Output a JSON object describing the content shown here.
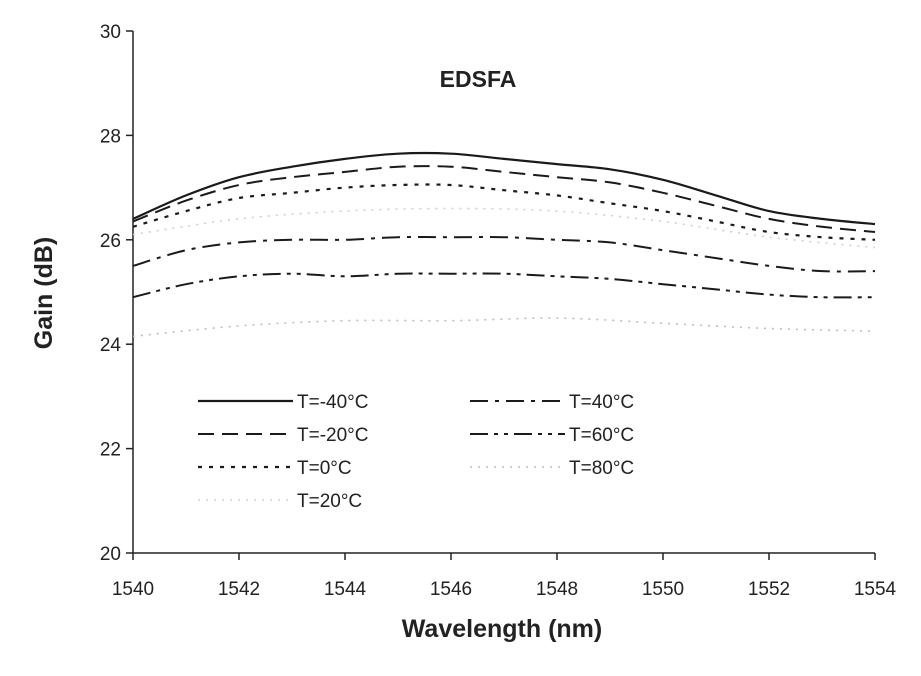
{
  "chart_data": {
    "type": "line",
    "title": "EDSFA",
    "xlabel": "Wavelength (nm)",
    "ylabel": "Gain (dB)",
    "xlim": [
      1540,
      1554
    ],
    "ylim": [
      20,
      30
    ],
    "xticks": [
      1540,
      1542,
      1544,
      1546,
      1548,
      1550,
      1552,
      1554
    ],
    "yticks": [
      20,
      22,
      24,
      26,
      28,
      30
    ],
    "grid": false,
    "legend_position": "lower-center",
    "series": [
      {
        "name": "T=-40°C",
        "style": "solid",
        "color": "#1a1a1a",
        "x": [
          1540,
          1541,
          1542,
          1543,
          1544,
          1545,
          1546,
          1547,
          1548,
          1549,
          1550,
          1551,
          1552,
          1553,
          1554
        ],
        "y": [
          26.4,
          26.85,
          27.2,
          27.4,
          27.55,
          27.65,
          27.65,
          27.55,
          27.45,
          27.35,
          27.15,
          26.85,
          26.55,
          26.4,
          26.3
        ]
      },
      {
        "name": "T=-20°C",
        "style": "dash",
        "color": "#1a1a1a",
        "x": [
          1540,
          1541,
          1542,
          1543,
          1544,
          1545,
          1546,
          1547,
          1548,
          1549,
          1550,
          1551,
          1552,
          1553,
          1554
        ],
        "y": [
          26.35,
          26.75,
          27.05,
          27.2,
          27.3,
          27.4,
          27.4,
          27.3,
          27.2,
          27.1,
          26.9,
          26.65,
          26.4,
          26.25,
          26.15
        ]
      },
      {
        "name": "T=0°C",
        "style": "dot",
        "color": "#1a1a1a",
        "x": [
          1540,
          1541,
          1542,
          1543,
          1544,
          1545,
          1546,
          1547,
          1548,
          1549,
          1550,
          1551,
          1552,
          1553,
          1554
        ],
        "y": [
          26.25,
          26.55,
          26.8,
          26.9,
          27.0,
          27.05,
          27.05,
          26.95,
          26.85,
          26.7,
          26.55,
          26.35,
          26.15,
          26.05,
          26.0
        ]
      },
      {
        "name": "T=20°C",
        "style": "faint",
        "color": "#cfcfcf",
        "x": [
          1540,
          1542,
          1544,
          1546,
          1548,
          1550,
          1552,
          1554
        ],
        "y": [
          26.1,
          26.4,
          26.55,
          26.6,
          26.55,
          26.35,
          26.05,
          25.85
        ]
      },
      {
        "name": "T=40°C",
        "style": "dashdot",
        "color": "#1a1a1a",
        "x": [
          1540,
          1541,
          1542,
          1543,
          1544,
          1545,
          1546,
          1547,
          1548,
          1549,
          1550,
          1551,
          1552,
          1553,
          1554
        ],
        "y": [
          25.5,
          25.8,
          25.95,
          26.0,
          26.0,
          26.05,
          26.05,
          26.05,
          26.0,
          25.95,
          25.8,
          25.65,
          25.5,
          25.4,
          25.4
        ]
      },
      {
        "name": "T=60°C",
        "style": "dashdotdot",
        "color": "#1a1a1a",
        "x": [
          1540,
          1541,
          1542,
          1543,
          1544,
          1545,
          1546,
          1547,
          1548,
          1549,
          1550,
          1551,
          1552,
          1553,
          1554
        ],
        "y": [
          24.9,
          25.15,
          25.3,
          25.35,
          25.3,
          25.35,
          25.35,
          25.35,
          25.3,
          25.25,
          25.15,
          25.05,
          24.95,
          24.9,
          24.9
        ]
      },
      {
        "name": "T=80°C",
        "style": "faint",
        "color": "#bdbdbd",
        "x": [
          1540,
          1542,
          1544,
          1546,
          1548,
          1550,
          1552,
          1554
        ],
        "y": [
          24.15,
          24.35,
          24.45,
          24.45,
          24.5,
          24.4,
          24.3,
          24.25
        ]
      }
    ]
  }
}
